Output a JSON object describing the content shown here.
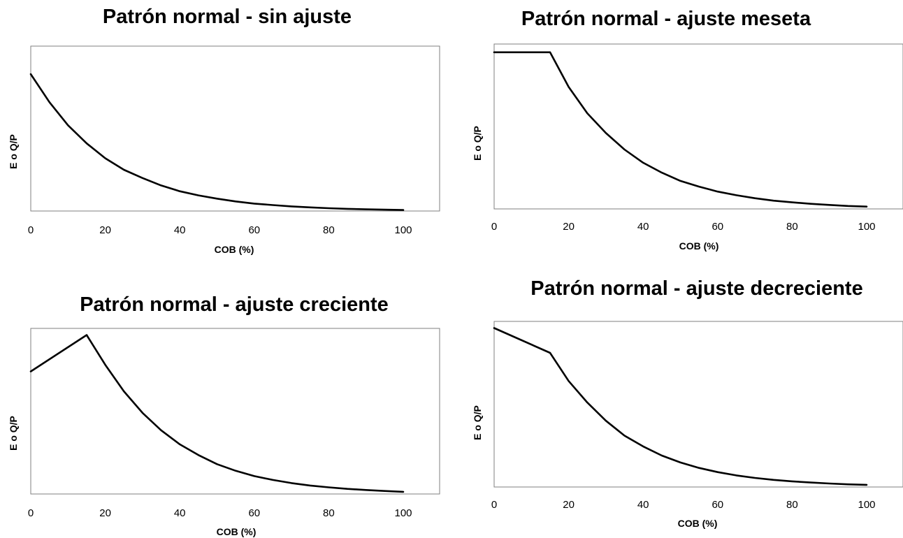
{
  "chart_data": [
    {
      "type": "line",
      "title": "Patrón normal - sin ajuste",
      "xlabel": "COB (%)",
      "ylabel": "E o Q/P",
      "xlim": [
        0,
        100
      ],
      "ylim": [
        0,
        1
      ],
      "x_ticks": [
        "0",
        "20",
        "40",
        "60",
        "80",
        "100"
      ],
      "y_tick_labels_shown": false,
      "grid": false,
      "legend": "none",
      "series": [
        {
          "x": [
            0,
            5,
            10,
            15,
            20,
            25,
            30,
            35,
            40,
            45,
            50,
            55,
            60,
            65,
            70,
            75,
            80,
            85,
            90,
            95,
            100
          ],
          "y": [
            0.83,
            0.66,
            0.52,
            0.41,
            0.32,
            0.25,
            0.2,
            0.155,
            0.12,
            0.095,
            0.075,
            0.058,
            0.045,
            0.036,
            0.028,
            0.022,
            0.017,
            0.013,
            0.01,
            0.008,
            0.006
          ]
        }
      ]
    },
    {
      "type": "line",
      "title": "Patrón normal - ajuste meseta",
      "xlabel": "COB (%)",
      "ylabel": "E o Q/P",
      "xlim": [
        0,
        100
      ],
      "ylim": [
        0,
        1
      ],
      "x_ticks": [
        "0",
        "20",
        "40",
        "60",
        "80",
        "100"
      ],
      "y_tick_labels_shown": false,
      "grid": false,
      "legend": "none",
      "series": [
        {
          "x": [
            0,
            15,
            20,
            25,
            30,
            35,
            40,
            45,
            50,
            55,
            60,
            65,
            70,
            75,
            80,
            85,
            90,
            95,
            100
          ],
          "y": [
            0.95,
            0.95,
            0.74,
            0.58,
            0.46,
            0.36,
            0.28,
            0.22,
            0.17,
            0.135,
            0.105,
            0.083,
            0.065,
            0.05,
            0.04,
            0.031,
            0.024,
            0.018,
            0.014
          ]
        }
      ]
    },
    {
      "type": "line",
      "title": "Patrón normal - ajuste creciente",
      "xlabel": "COB (%)",
      "ylabel": "E o Q/P",
      "xlim": [
        0,
        100
      ],
      "ylim": [
        0,
        1
      ],
      "x_ticks": [
        "0",
        "20",
        "40",
        "60",
        "80",
        "100"
      ],
      "y_tick_labels_shown": false,
      "grid": false,
      "legend": "none",
      "series": [
        {
          "x": [
            0,
            15,
            20,
            25,
            30,
            35,
            40,
            45,
            50,
            55,
            60,
            65,
            70,
            75,
            80,
            85,
            90,
            95,
            100
          ],
          "y": [
            0.74,
            0.96,
            0.78,
            0.62,
            0.49,
            0.385,
            0.3,
            0.235,
            0.18,
            0.14,
            0.108,
            0.085,
            0.066,
            0.051,
            0.04,
            0.031,
            0.024,
            0.018,
            0.013
          ]
        }
      ]
    },
    {
      "type": "line",
      "title": "Patrón normal - ajuste decreciente",
      "xlabel": "COB (%)",
      "ylabel": "E o Q/P",
      "xlim": [
        0,
        100
      ],
      "ylim": [
        0,
        1
      ],
      "x_ticks": [
        "0",
        "20",
        "40",
        "60",
        "80",
        "100"
      ],
      "y_tick_labels_shown": false,
      "grid": false,
      "legend": "none",
      "series": [
        {
          "x": [
            0,
            15,
            20,
            25,
            30,
            35,
            40,
            45,
            50,
            55,
            60,
            65,
            70,
            75,
            80,
            85,
            90,
            95,
            100
          ],
          "y": [
            0.96,
            0.81,
            0.64,
            0.51,
            0.4,
            0.31,
            0.245,
            0.19,
            0.148,
            0.115,
            0.09,
            0.07,
            0.055,
            0.043,
            0.034,
            0.027,
            0.021,
            0.016,
            0.013
          ]
        }
      ]
    }
  ]
}
